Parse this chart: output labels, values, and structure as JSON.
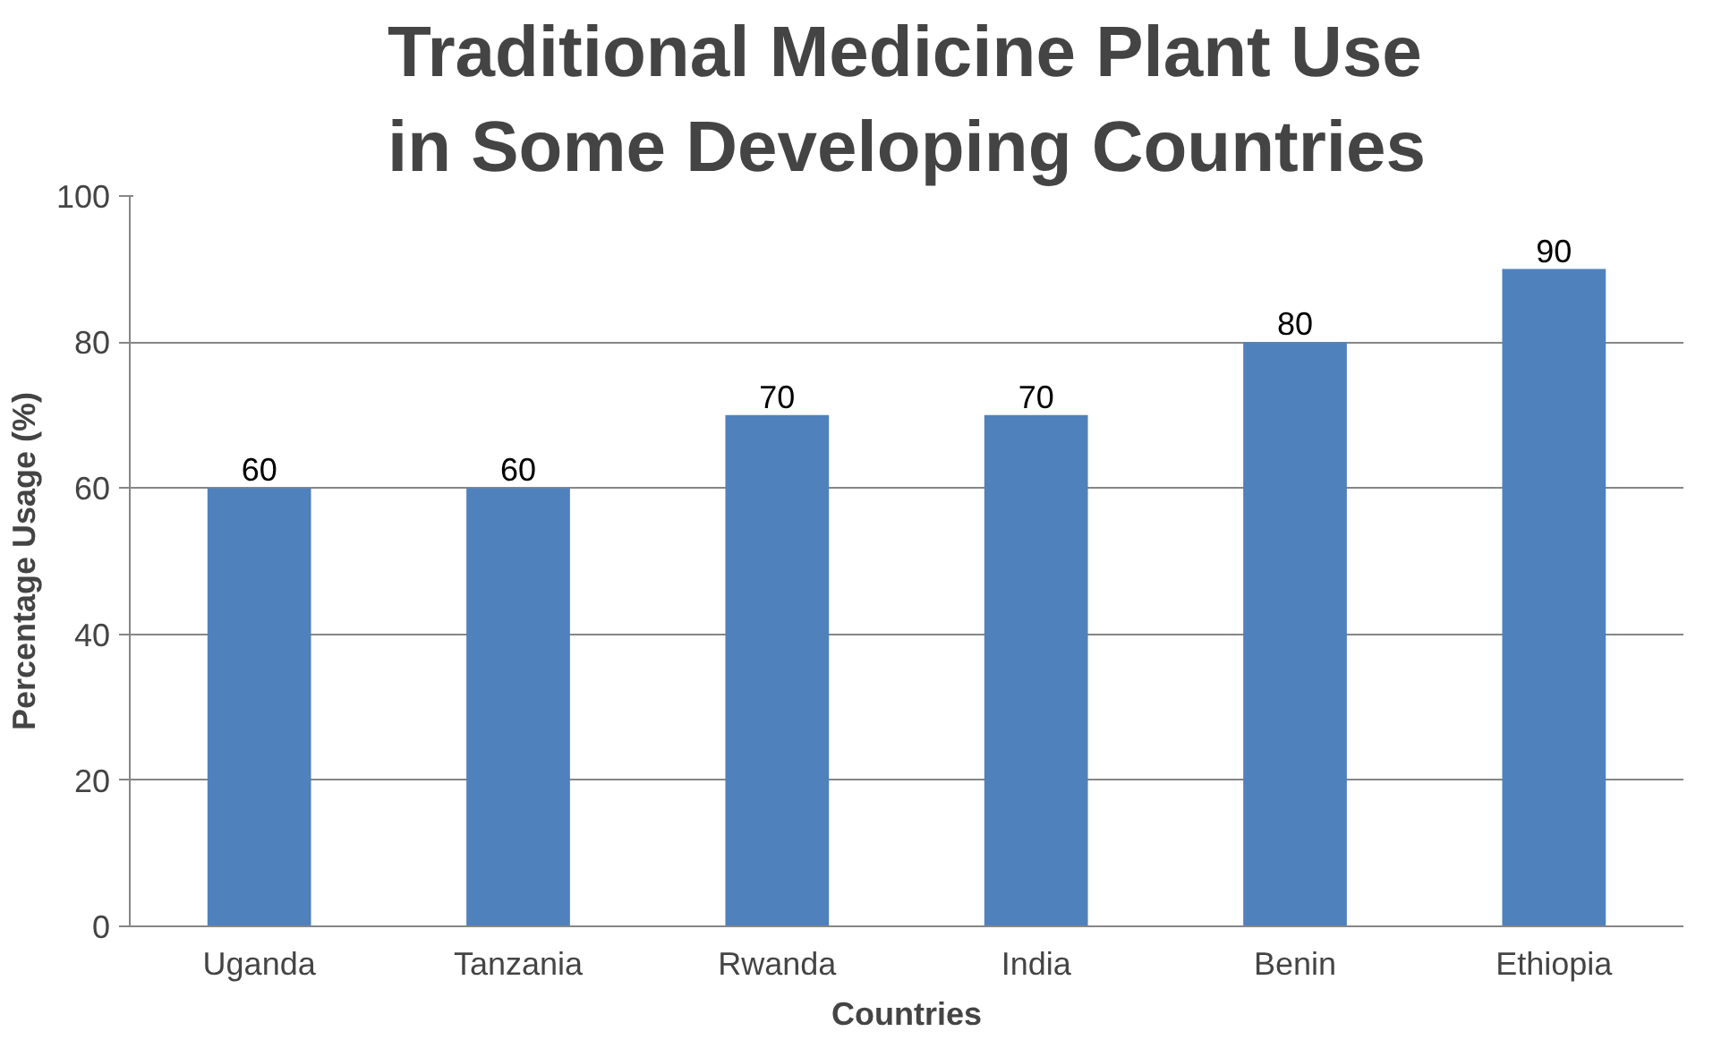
{
  "chart_data": {
    "type": "bar",
    "title": "Traditional Medicine Plant Use in Some Developing Countries",
    "xlabel": "Countries",
    "ylabel": "Percentage Usage (%)",
    "categories": [
      "Uganda",
      "Tanzania",
      "Rwanda",
      "India",
      "Benin",
      "Ethiopia"
    ],
    "values": [
      60,
      60,
      70,
      70,
      80,
      90
    ],
    "color": "#4f81bd",
    "ylim": [
      0,
      100
    ],
    "yticks": [
      0,
      20,
      40,
      60,
      80,
      100
    ],
    "grid": "y",
    "data_labels": true
  }
}
